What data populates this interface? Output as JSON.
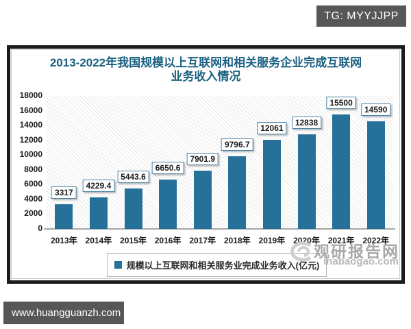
{
  "tg_badge": {
    "label": "TG: MYYJJPP"
  },
  "footer": {
    "url": "www.huangguanzh.com"
  },
  "watermark": {
    "site_name": "观研报告网",
    "domain": "inabaogao.com"
  },
  "chart_data": {
    "type": "bar",
    "title": "2013-2022年我国规模以上互联网和相关服务企业完成互联网业务收入情况",
    "title_lines": [
      "2013-2022年我国规模以上互联网和相关服务企业完成互联网",
      "业务收入情况"
    ],
    "categories": [
      "2013年",
      "2014年",
      "2015年",
      "2016年",
      "2017年",
      "2018年",
      "2019年",
      "2020年",
      "2021年",
      "2022年"
    ],
    "values": [
      3317,
      4229.4,
      5443.6,
      6650.6,
      7901.9,
      9796.7,
      12061,
      12838,
      15500,
      14590
    ],
    "value_labels": [
      "3317",
      "4229.4",
      "5443.6",
      "6650.6",
      "7901.9",
      "9796.7",
      "12061",
      "12838",
      "15500",
      "14590"
    ],
    "xlabel": "",
    "ylabel": "",
    "ylim": [
      0,
      18000
    ],
    "ytick_interval": 2000,
    "yticks": [
      18000,
      16000,
      14000,
      12000,
      10000,
      8000,
      6000,
      4000,
      2000,
      0
    ],
    "legend": [
      "规模以上互联网和相关服务业完成业务收入(亿元)"
    ],
    "legend_position": "bottom",
    "grid": false,
    "plot_background": "diagonal-hatch",
    "colors": {
      "bar": "#26719a",
      "title": "#1a6080",
      "label_box_border": "#4a85a8",
      "hatch_line": "#e8e8e8",
      "badge_bg": "#575757"
    }
  }
}
